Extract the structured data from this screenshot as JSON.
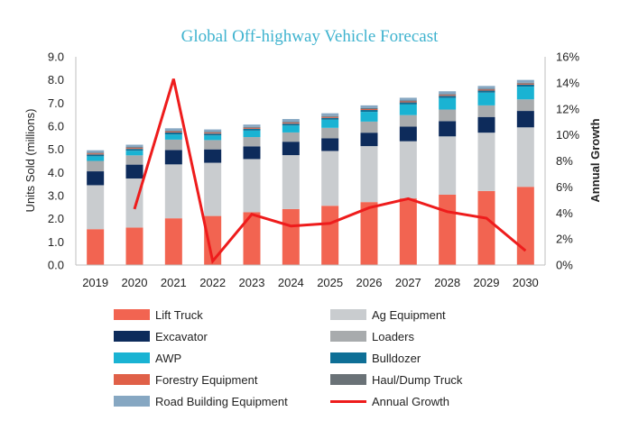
{
  "chart_data": {
    "type": "bar",
    "title": "Global Off-highway Vehicle Forecast",
    "ylabel": "Units Sold (millions)",
    "y2label": "Annual Growth",
    "ylim": [
      0,
      9
    ],
    "y2lim": [
      0,
      16
    ],
    "yticks": [
      "0.0",
      "1.0",
      "2.0",
      "3.0",
      "4.0",
      "5.0",
      "6.0",
      "7.0",
      "8.0",
      "9.0"
    ],
    "y2ticks": [
      "0%",
      "2%",
      "4%",
      "6%",
      "8%",
      "10%",
      "12%",
      "14%",
      "16%"
    ],
    "categories": [
      "2019",
      "2020",
      "2021",
      "2022",
      "2023",
      "2024",
      "2025",
      "2026",
      "2027",
      "2028",
      "2029",
      "2030"
    ],
    "stacked": true,
    "grid": false,
    "legend_position": "bottom",
    "series": [
      {
        "name": "Lift Truck",
        "color": "#f26451",
        "values": [
          1.55,
          1.62,
          2.02,
          2.12,
          2.28,
          2.42,
          2.56,
          2.72,
          2.88,
          3.04,
          3.2,
          3.38
        ]
      },
      {
        "name": "Ag Equipment",
        "color": "#c9cccf",
        "values": [
          1.9,
          2.12,
          2.33,
          2.3,
          2.3,
          2.33,
          2.37,
          2.42,
          2.47,
          2.52,
          2.52,
          2.57
        ]
      },
      {
        "name": "Excavator",
        "color": "#0d2b5b",
        "values": [
          0.6,
          0.6,
          0.62,
          0.58,
          0.55,
          0.58,
          0.55,
          0.58,
          0.63,
          0.66,
          0.68,
          0.71
        ]
      },
      {
        "name": "Loaders",
        "color": "#a8abad",
        "values": [
          0.45,
          0.4,
          0.45,
          0.4,
          0.4,
          0.4,
          0.45,
          0.48,
          0.5,
          0.5,
          0.5,
          0.5
        ]
      },
      {
        "name": "AWP",
        "color": "#1ab3d3",
        "values": [
          0.2,
          0.2,
          0.22,
          0.2,
          0.28,
          0.3,
          0.35,
          0.42,
          0.46,
          0.5,
          0.55,
          0.55
        ]
      },
      {
        "name": "Bulldozer",
        "color": "#0e6f96",
        "values": [
          0.08,
          0.08,
          0.09,
          0.08,
          0.08,
          0.08,
          0.08,
          0.08,
          0.09,
          0.09,
          0.09,
          0.09
        ]
      },
      {
        "name": "Forestry Equipment",
        "color": "#e06048",
        "values": [
          0.04,
          0.04,
          0.04,
          0.04,
          0.04,
          0.04,
          0.04,
          0.04,
          0.04,
          0.04,
          0.04,
          0.04
        ]
      },
      {
        "name": "Haul/Dump Truck",
        "color": "#6a7277",
        "values": [
          0.04,
          0.04,
          0.04,
          0.04,
          0.04,
          0.04,
          0.04,
          0.04,
          0.04,
          0.04,
          0.04,
          0.04
        ]
      },
      {
        "name": "Road Building Equipment",
        "color": "#86a7c2",
        "values": [
          0.1,
          0.1,
          0.1,
          0.1,
          0.1,
          0.12,
          0.12,
          0.12,
          0.12,
          0.12,
          0.12,
          0.12
        ]
      }
    ],
    "line_series": {
      "name": "Annual Growth",
      "color": "#ee1c1c",
      "axis": "right",
      "values": [
        null,
        4.3,
        14.3,
        0.3,
        3.9,
        3.0,
        3.2,
        4.4,
        5.1,
        4.1,
        3.6,
        1.1
      ]
    }
  }
}
